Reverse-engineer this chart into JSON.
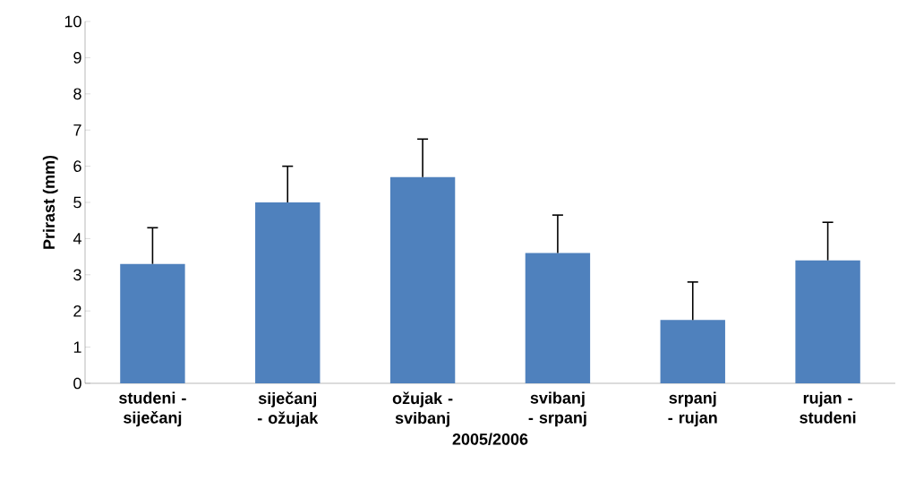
{
  "chart_data": {
    "type": "bar",
    "xlabel": "2005/2006",
    "ylabel": "Prirast (mm)",
    "categories": [
      "studeni - siječanj",
      "siječanj - ožujak",
      "ožujak - svibanj",
      "svibanj - srpanj",
      "srpanj - rujan",
      "rujan - studeni"
    ],
    "values": [
      3.3,
      5.0,
      5.7,
      3.6,
      1.75,
      3.4
    ],
    "errors": [
      [
        3.3,
        4.3
      ],
      [
        5.0,
        6.0
      ],
      [
        5.7,
        6.75
      ],
      [
        3.6,
        4.65
      ],
      [
        1.75,
        2.8
      ],
      [
        3.4,
        4.45
      ]
    ],
    "color": "#4f81bd",
    "ylim": [
      0,
      10
    ],
    "yticks": [
      0,
      1,
      2,
      3,
      4,
      5,
      6,
      7,
      8,
      9,
      10
    ],
    "grid": false
  }
}
